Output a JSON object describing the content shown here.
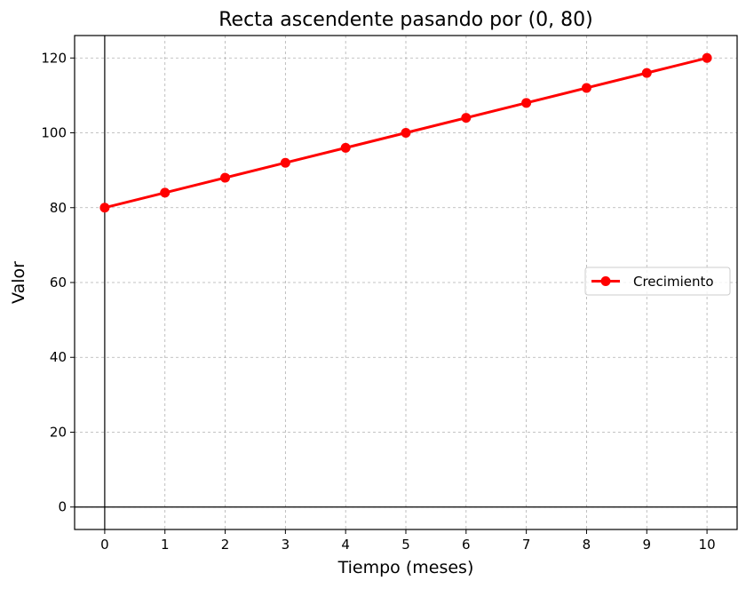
{
  "chart_data": {
    "type": "line",
    "title": "Recta ascendente pasando por (0, 80)",
    "xlabel": "Tiempo (meses)",
    "ylabel": "Valor",
    "xlim": [
      -0.5,
      10.5
    ],
    "ylim": [
      -6,
      126
    ],
    "xticks": [
      0,
      1,
      2,
      3,
      4,
      5,
      6,
      7,
      8,
      9,
      10
    ],
    "yticks": [
      0,
      20,
      40,
      60,
      80,
      100,
      120
    ],
    "grid": true,
    "grid_style": "dashed",
    "reference_lines": {
      "x": 0,
      "y": 0
    },
    "legend_position": "center-right",
    "series": [
      {
        "name": "Crecimiento",
        "color": "#ff0000",
        "marker": "circle",
        "x": [
          0,
          1,
          2,
          3,
          4,
          5,
          6,
          7,
          8,
          9,
          10
        ],
        "y": [
          80,
          84,
          88,
          92,
          96,
          100,
          104,
          108,
          112,
          116,
          120
        ]
      }
    ]
  }
}
